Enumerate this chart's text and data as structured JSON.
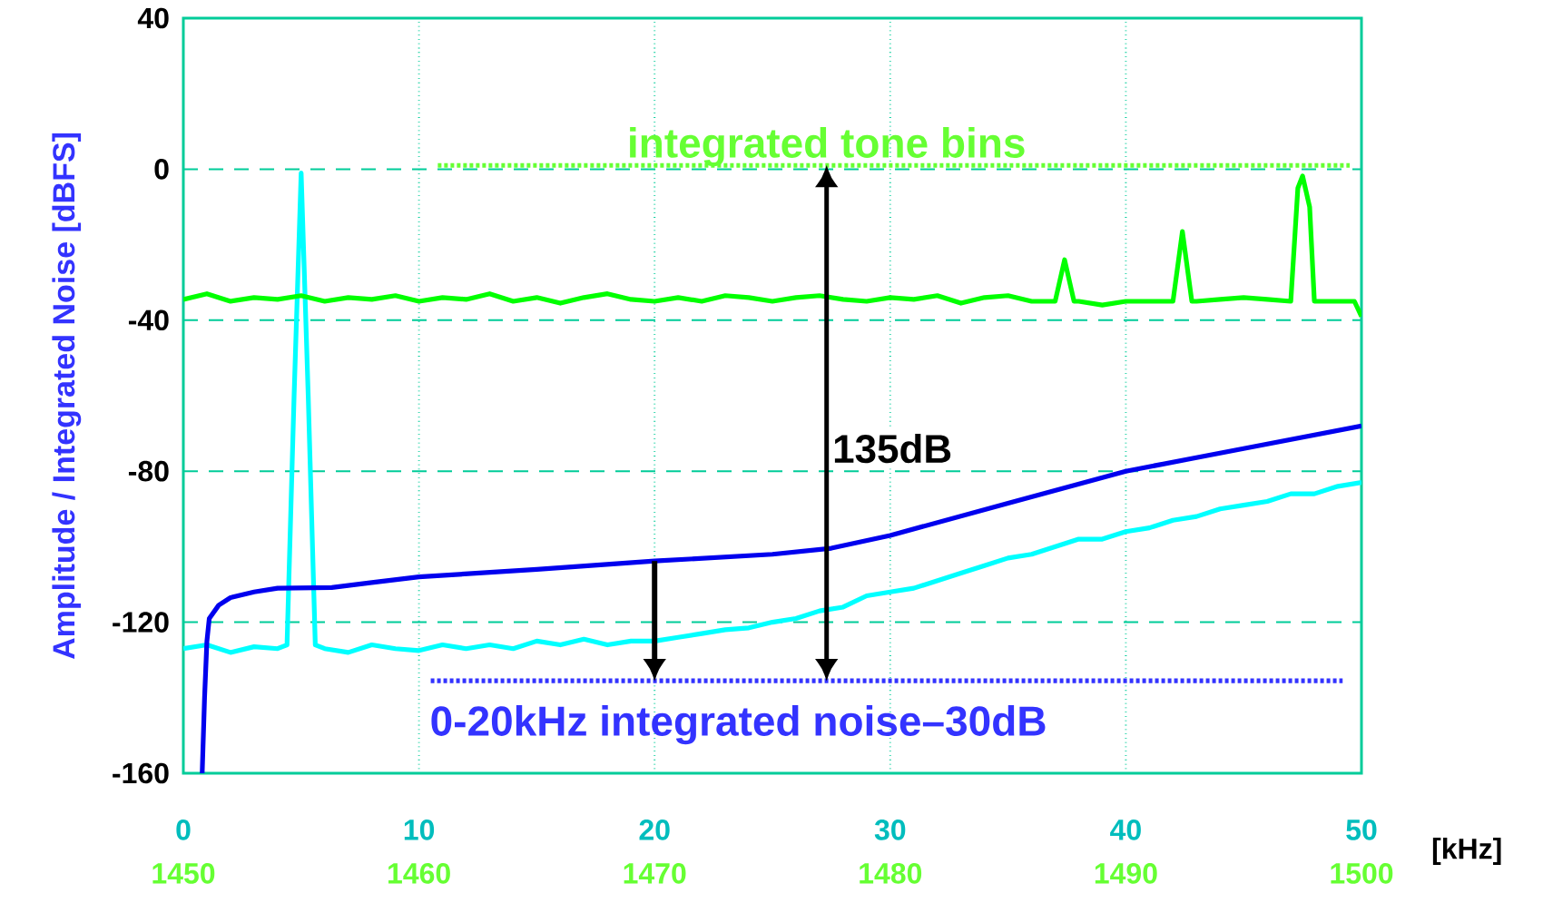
{
  "chart_data": {
    "type": "line",
    "ylabel": "Amplitude / Integrated Noise [dBFS]",
    "xlabel": "[kHz]",
    "xlim": [
      0,
      50
    ],
    "xticks": [
      0,
      10,
      20,
      30,
      40,
      50
    ],
    "x2lim": [
      1450,
      1500
    ],
    "x2ticks": [
      1450,
      1460,
      1470,
      1480,
      1490,
      1500
    ],
    "ylim": [
      -160,
      40
    ],
    "yticks": [
      -160,
      -120,
      -80,
      -40,
      0,
      40
    ],
    "grid": true,
    "marker": "none",
    "series": [
      {
        "color": "#00ffff",
        "x": [
          0,
          1,
          2,
          3,
          4,
          4.4,
          4.7,
          5.0,
          5.3,
          5.6,
          6,
          7,
          8,
          9,
          10,
          11,
          12,
          13,
          14,
          15,
          16,
          17,
          18,
          19,
          20,
          21,
          22,
          23,
          24,
          25,
          26,
          27,
          28,
          29,
          30,
          31,
          32,
          33,
          34,
          35,
          36,
          37,
          38,
          39,
          40,
          41,
          42,
          43,
          44,
          45,
          46,
          47,
          48,
          49,
          50
        ],
        "values": [
          -127,
          -126,
          -128,
          -126.5,
          -127,
          -126,
          -60,
          -1,
          -60,
          -126,
          -127,
          -128,
          -126,
          -127,
          -127.5,
          -126,
          -127,
          -126,
          -127,
          -125,
          -126,
          -124.5,
          -126,
          -125,
          -125,
          -124,
          -123,
          -122,
          -121.5,
          -120,
          -119,
          -117,
          -116,
          -113,
          -112,
          -111,
          -109,
          -107,
          -105,
          -103,
          -102,
          -100,
          -98,
          -98,
          -96,
          -95,
          -93,
          -92,
          -90,
          -89,
          -88,
          -86,
          -86,
          -84,
          -83
        ]
      },
      {
        "color": "#00ff00",
        "x": [
          0,
          1,
          2,
          3,
          4,
          5,
          6,
          7,
          8,
          9,
          10,
          11,
          12,
          13,
          14,
          15,
          16,
          17,
          18,
          19,
          20,
          21,
          22,
          23,
          24,
          25,
          26,
          27,
          28,
          29,
          30,
          31,
          32,
          33,
          34,
          35,
          36,
          37,
          37.4,
          37.8,
          38,
          39,
          40,
          41,
          42,
          42.4,
          42.8,
          43,
          44,
          45,
          46,
          47,
          47.3,
          47.5,
          47.8,
          48,
          49,
          49.7,
          50
        ],
        "values": [
          -34.5,
          -33,
          -35,
          -34,
          -34.5,
          -33.5,
          -35,
          -34,
          -34.5,
          -33.5,
          -35,
          -34,
          -34.5,
          -33,
          -35,
          -34,
          -35.5,
          -34,
          -33,
          -34.5,
          -35,
          -34,
          -35,
          -33.5,
          -34,
          -35,
          -34,
          -33.5,
          -34.5,
          -35,
          -34,
          -34.5,
          -33.5,
          -35.5,
          -34,
          -33.5,
          -35,
          -35,
          -24,
          -35,
          -35,
          -36,
          -35,
          -35,
          -35,
          -16.5,
          -35,
          -35,
          -34.5,
          -34,
          -34.5,
          -35,
          -5,
          -1.8,
          -10,
          -35,
          -35,
          -35,
          -39
        ]
      },
      {
        "color": "#0000ee",
        "x": [
          0.8,
          0.9,
          1.0,
          1.1,
          1.5,
          2,
          3,
          4,
          6.3,
          8,
          10,
          15,
          20,
          25,
          27.5,
          30,
          35,
          40,
          45,
          50
        ],
        "values": [
          -160,
          -140,
          -125,
          -119,
          -115.5,
          -113.5,
          -112,
          -111,
          -110.8,
          -109.5,
          -108,
          -106,
          -103.8,
          -102,
          -100.4,
          -97,
          -88.5,
          -80,
          -74,
          -68
        ]
      },
      {
        "color": "#66ff33",
        "line_style": "dotted",
        "x": [
          10.8,
          49.5
        ],
        "values": [
          1,
          1
        ]
      },
      {
        "color": "#3333ff",
        "line_style": "dotted",
        "x": [
          10.5,
          49.2
        ],
        "values": [
          -135.5,
          -135.5
        ]
      }
    ],
    "annotations": [
      {
        "text": "integrated tone bins",
        "x": 27.3,
        "y": 1
      },
      "135dB",
      {
        "text": "0-20kHz integrated noise–30dB",
        "x": 20,
        "y": -135.5
      }
    ]
  }
}
